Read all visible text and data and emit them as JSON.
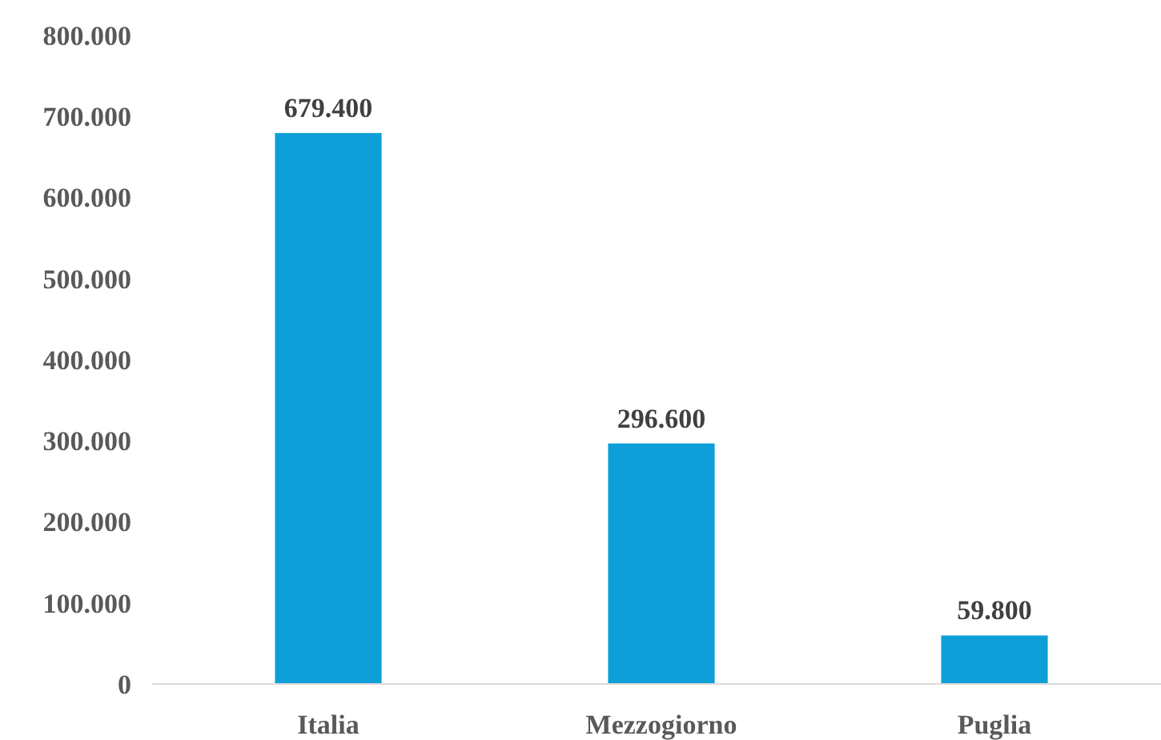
{
  "chart_data": {
    "type": "bar",
    "categories": [
      "Italia",
      "Mezzogiorno",
      "Puglia"
    ],
    "values": [
      679400,
      296600,
      59800
    ],
    "value_labels": [
      "679.400",
      "296.600",
      "59.800"
    ],
    "color": "#0e9fd8",
    "ylim": [
      0,
      800000
    ],
    "yticks": [
      {
        "value": 0,
        "label": "0"
      },
      {
        "value": 100000,
        "label": "100.000"
      },
      {
        "value": 200000,
        "label": "200.000"
      },
      {
        "value": 300000,
        "label": "300.000"
      },
      {
        "value": 400000,
        "label": "400.000"
      },
      {
        "value": 500000,
        "label": "500.000"
      },
      {
        "value": 600000,
        "label": "600.000"
      },
      {
        "value": 700000,
        "label": "700.000"
      },
      {
        "value": 800000,
        "label": "800.000"
      }
    ],
    "grid": false
  }
}
